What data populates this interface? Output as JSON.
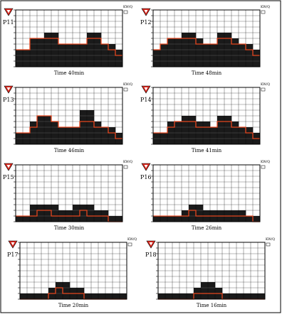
{
  "layout": {
    "rows": 4,
    "cols": 2
  },
  "colors": {
    "bar_fill": "#1a1a1a",
    "grid_line": "#ffffff",
    "plot_border": "#000000",
    "overlay_line": "#e3461f",
    "icon_red": "#d9261c",
    "background": "#ffffff"
  },
  "icon_name": "red-triangle-warning-icon",
  "panel_grid": {
    "cols": 15,
    "rows": 10
  },
  "chart_data": [
    {
      "id": "P11",
      "label": "P11",
      "caption": "Time 40min",
      "top_right_label": "KW/Q",
      "type": "bar",
      "x": [
        1,
        2,
        3,
        4,
        5,
        6,
        7,
        8,
        9,
        10,
        11,
        12,
        13,
        14,
        15
      ],
      "values": [
        3,
        3,
        5,
        5,
        6,
        6,
        4,
        4,
        4,
        4,
        6,
        6,
        4,
        4,
        3
      ],
      "series": [
        {
          "type": "line",
          "values": [
            3,
            3,
            5,
            5,
            5,
            5,
            4,
            4,
            4,
            4,
            5,
            5,
            4,
            3,
            2
          ]
        }
      ],
      "ylim": [
        0,
        10
      ],
      "grid": true
    },
    {
      "id": "P12",
      "label": "P12",
      "caption": "Time 48min",
      "top_right_label": "KW/Q",
      "type": "bar",
      "x": [
        1,
        2,
        3,
        4,
        5,
        6,
        7,
        8,
        9,
        10,
        11,
        12,
        13,
        14,
        15
      ],
      "values": [
        3,
        4,
        5,
        5,
        6,
        6,
        5,
        4,
        4,
        6,
        6,
        5,
        4,
        4,
        3
      ],
      "series": [
        {
          "type": "line",
          "values": [
            3,
            4,
            5,
            5,
            5,
            5,
            4,
            4,
            4,
            5,
            5,
            4,
            4,
            3,
            2
          ]
        }
      ],
      "ylim": [
        0,
        10
      ],
      "grid": true
    },
    {
      "id": "P13",
      "label": "P13",
      "caption": "Time 46min",
      "top_right_label": "KW/Q",
      "type": "bar",
      "x": [
        1,
        2,
        3,
        4,
        5,
        6,
        7,
        8,
        9,
        10,
        11,
        12,
        13,
        14,
        15
      ],
      "values": [
        2,
        2,
        4,
        5,
        5,
        4,
        3,
        3,
        3,
        6,
        6,
        4,
        3,
        3,
        2
      ],
      "series": [
        {
          "type": "line",
          "values": [
            2,
            2,
            3,
            5,
            5,
            4,
            3,
            3,
            3,
            4,
            4,
            3,
            3,
            2,
            1
          ]
        }
      ],
      "ylim": [
        0,
        10
      ],
      "grid": true
    },
    {
      "id": "P14",
      "label": "P14",
      "caption": "Time 41min",
      "top_right_label": "KW/Q",
      "type": "bar",
      "x": [
        1,
        2,
        3,
        4,
        5,
        6,
        7,
        8,
        9,
        10,
        11,
        12,
        13,
        14,
        15
      ],
      "values": [
        2,
        2,
        4,
        4,
        5,
        5,
        4,
        4,
        3,
        5,
        5,
        4,
        3,
        3,
        2
      ],
      "series": [
        {
          "type": "line",
          "values": [
            2,
            2,
            3,
            4,
            4,
            4,
            3,
            3,
            3,
            4,
            4,
            3,
            3,
            2,
            1
          ]
        }
      ],
      "ylim": [
        0,
        10
      ],
      "grid": true
    },
    {
      "id": "P15",
      "label": "P15",
      "caption": "Time 30min",
      "top_right_label": "KW/Q",
      "type": "bar",
      "x": [
        1,
        2,
        3,
        4,
        5,
        6,
        7,
        8,
        9,
        10,
        11,
        12,
        13,
        14,
        15
      ],
      "values": [
        1,
        1,
        3,
        3,
        3,
        3,
        2,
        2,
        3,
        3,
        3,
        2,
        2,
        1,
        1
      ],
      "series": [
        {
          "type": "line",
          "values": [
            1,
            1,
            1,
            2,
            2,
            1,
            1,
            1,
            1,
            2,
            1,
            1,
            1,
            0,
            0
          ]
        }
      ],
      "ylim": [
        0,
        10
      ],
      "grid": true
    },
    {
      "id": "P16",
      "label": "P16",
      "caption": "Time 26min",
      "top_right_label": "KW/Q",
      "type": "bar",
      "x": [
        1,
        2,
        3,
        4,
        5,
        6,
        7,
        8,
        9,
        10,
        11,
        12,
        13,
        14,
        15
      ],
      "values": [
        1,
        1,
        1,
        1,
        2,
        3,
        3,
        2,
        2,
        2,
        2,
        2,
        2,
        1,
        1
      ],
      "series": [
        {
          "type": "line",
          "values": [
            1,
            1,
            1,
            1,
            1,
            2,
            1,
            1,
            1,
            1,
            1,
            1,
            1,
            1,
            0
          ]
        }
      ],
      "ylim": [
        0,
        10
      ],
      "grid": true
    },
    {
      "id": "P17",
      "label": "P17",
      "caption": "Time 20min",
      "top_right_label": "KW/Q",
      "type": "bar",
      "x": [
        1,
        2,
        3,
        4,
        5,
        6,
        7,
        8,
        9,
        10,
        11,
        12,
        13,
        14,
        15
      ],
      "values": [
        1,
        1,
        1,
        1,
        2,
        3,
        3,
        2,
        2,
        1,
        1,
        1,
        1,
        1,
        1
      ],
      "series": [
        {
          "type": "line",
          "values": [
            0,
            0,
            0,
            0,
            1,
            2,
            1,
            1,
            1,
            0,
            0,
            0,
            0,
            0,
            0
          ]
        }
      ],
      "ylim": [
        0,
        10
      ],
      "grid": true
    },
    {
      "id": "P18",
      "label": "P18",
      "caption": "Time 16min",
      "top_right_label": "KW/Q",
      "type": "bar",
      "x": [
        1,
        2,
        3,
        4,
        5,
        6,
        7,
        8,
        9,
        10,
        11,
        12,
        13,
        14,
        15
      ],
      "values": [
        1,
        1,
        1,
        1,
        1,
        2,
        3,
        3,
        2,
        1,
        1,
        1,
        1,
        1,
        1
      ],
      "series": [
        {
          "type": "line",
          "values": [
            0,
            0,
            0,
            0,
            0,
            1,
            1,
            1,
            1,
            0,
            0,
            0,
            0,
            0,
            0
          ]
        }
      ],
      "ylim": [
        0,
        10
      ],
      "grid": true
    }
  ]
}
